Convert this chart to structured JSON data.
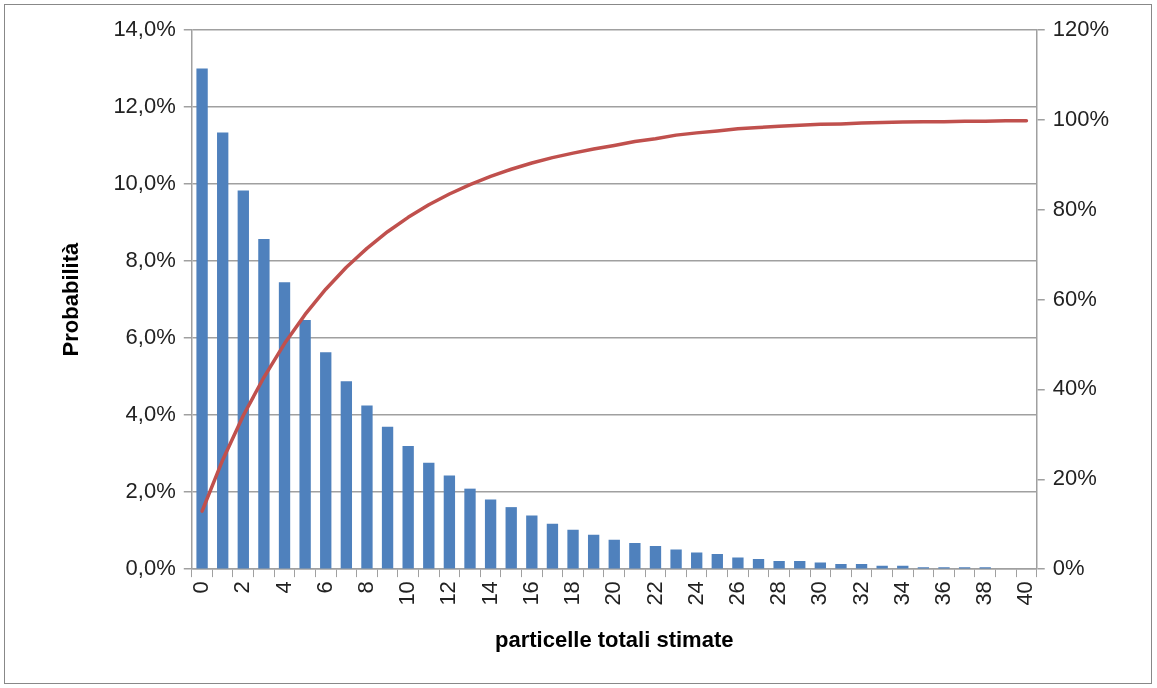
{
  "chart_data": {
    "type": "bar",
    "xlabel": "particelle totali stimate",
    "ylabel": "Probabilità",
    "categories": [
      "0",
      null,
      "2",
      null,
      "4",
      null,
      "6",
      null,
      "8",
      null,
      "10",
      null,
      "12",
      null,
      "14",
      null,
      "16",
      null,
      "18",
      null,
      "20",
      null,
      "22",
      null,
      "24",
      null,
      "26",
      null,
      "28",
      null,
      "30",
      null,
      "32",
      null,
      "34",
      null,
      "36",
      null,
      "38",
      null,
      "40"
    ],
    "series": [
      {
        "color": "#4f81bd",
        "values": [
          13.0,
          11.34,
          9.83,
          8.57,
          7.45,
          6.47,
          5.63,
          4.88,
          4.25,
          3.7,
          3.2,
          2.76,
          2.43,
          2.09,
          1.81,
          1.61,
          1.39,
          1.18,
          1.02,
          0.89,
          0.76,
          0.68,
          0.6,
          0.51,
          0.43,
          0.39,
          0.3,
          0.26,
          0.21,
          0.21,
          0.17,
          0.13,
          0.13,
          0.09,
          0.09,
          0.05,
          0.05,
          0.05,
          0.05,
          0,
          0
        ]
      },
      {
        "type": "line",
        "axis": "y2",
        "color": "#c0504d",
        "values": [
          12.9,
          24.3,
          34.2,
          42.7,
          50.2,
          56.7,
          62.3,
          67.2,
          71.4,
          75.1,
          78.3,
          81.1,
          83.5,
          85.6,
          87.4,
          89.0,
          90.4,
          91.6,
          92.6,
          93.5,
          94.3,
          95.2,
          95.8,
          96.6,
          97.1,
          97.5,
          98.0,
          98.3,
          98.6,
          98.8,
          99.0,
          99.1,
          99.3,
          99.4,
          99.5,
          99.6,
          99.6,
          99.7,
          99.7,
          99.8,
          99.8
        ]
      }
    ],
    "ylim": [
      0,
      14
    ],
    "yticks": [
      {
        "value": 0,
        "label": "0,0%"
      },
      {
        "value": 2,
        "label": "2,0%"
      },
      {
        "value": 4,
        "label": "4,0%"
      },
      {
        "value": 6,
        "label": "6,0%"
      },
      {
        "value": 8,
        "label": "8,0%"
      },
      {
        "value": 10,
        "label": "10,0%"
      },
      {
        "value": 12,
        "label": "12,0%"
      },
      {
        "value": 14,
        "label": "14,0%"
      }
    ],
    "y2lim": [
      0,
      120
    ],
    "y2ticks": [
      {
        "value": 0,
        "label": "0%"
      },
      {
        "value": 20,
        "label": "20%"
      },
      {
        "value": 40,
        "label": "40%"
      },
      {
        "value": 60,
        "label": "60%"
      },
      {
        "value": 80,
        "label": "80%"
      },
      {
        "value": 100,
        "label": "100%"
      },
      {
        "value": 120,
        "label": "120%"
      }
    ],
    "grid": "y",
    "legend": false,
    "marker": "none",
    "line_style": "solid"
  }
}
